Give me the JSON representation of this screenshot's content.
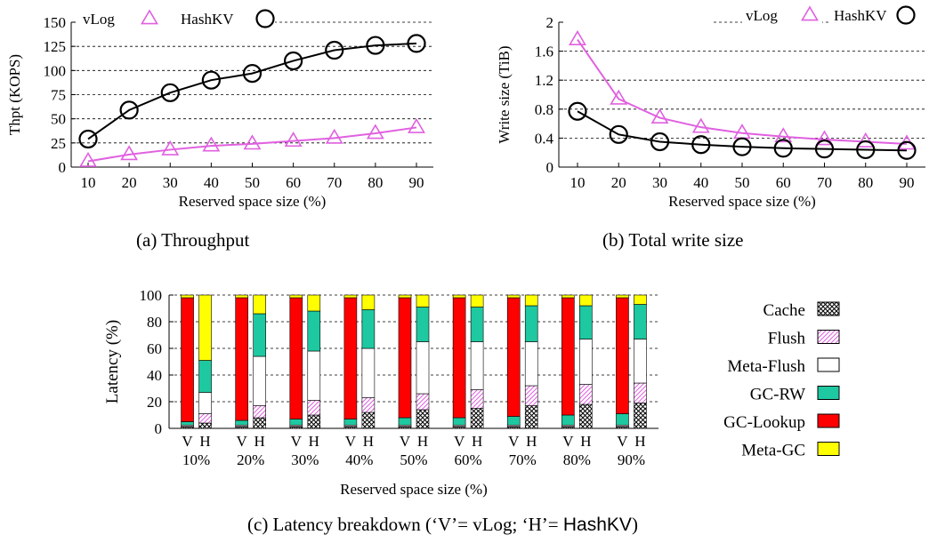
{
  "chart_data": [
    {
      "id": "a",
      "type": "line",
      "caption": "(a) Throughput",
      "xlabel": "Reserved space size (%)",
      "ylabel": "Thpt (KOPS)",
      "x": [
        10,
        20,
        30,
        40,
        50,
        60,
        70,
        80,
        90
      ],
      "x_tick_labels": [
        "10",
        "20",
        "30",
        "40",
        "50",
        "60",
        "70",
        "80",
        "90"
      ],
      "ylim": [
        0,
        150
      ],
      "y_ticks": [
        0,
        25,
        50,
        75,
        100,
        125,
        150
      ],
      "grid": "horizontal dashed",
      "legend_placement": "top",
      "series": [
        {
          "name": "vLog",
          "marker": "triangle",
          "color": "#e060e0",
          "values": [
            6,
            13,
            18,
            22,
            24,
            27,
            30,
            35,
            41
          ]
        },
        {
          "name": "HashKV",
          "marker": "circle",
          "color": "#000000",
          "values": [
            29,
            59,
            77,
            90,
            97,
            110,
            121,
            126,
            128
          ]
        }
      ]
    },
    {
      "id": "b",
      "type": "line",
      "caption": "(b) Total write size",
      "xlabel": "Reserved space size (%)",
      "ylabel": "Write size (TiB)",
      "x": [
        10,
        20,
        30,
        40,
        50,
        60,
        70,
        80,
        90
      ],
      "x_tick_labels": [
        "10",
        "20",
        "30",
        "40",
        "50",
        "60",
        "70",
        "80",
        "90"
      ],
      "ylim": [
        0,
        2
      ],
      "y_ticks": [
        0,
        0.4,
        0.8,
        1.2,
        1.6,
        2
      ],
      "y_tick_labels": [
        "0",
        "0.4",
        "0.8",
        "1.2",
        "1.6",
        "2"
      ],
      "grid": "horizontal dashed",
      "legend_placement": "top-right",
      "series": [
        {
          "name": "vLog",
          "marker": "triangle",
          "color": "#e060e0",
          "values": [
            1.76,
            0.94,
            0.68,
            0.55,
            0.47,
            0.42,
            0.38,
            0.35,
            0.32
          ]
        },
        {
          "name": "HashKV",
          "marker": "circle",
          "color": "#000000",
          "values": [
            0.77,
            0.45,
            0.35,
            0.31,
            0.28,
            0.26,
            0.25,
            0.24,
            0.23
          ]
        }
      ]
    },
    {
      "id": "c",
      "type": "bar",
      "stacked": true,
      "caption_prefix": "(c) Latency breakdown (‘V’= vLog; ‘H’= ",
      "caption_brand": "HashKV",
      "caption_suffix": ")",
      "xlabel": "Reserved space size (%)",
      "ylabel": "Latency (%)",
      "ylim": [
        0,
        100
      ],
      "y_ticks": [
        0,
        20,
        40,
        60,
        80,
        100
      ],
      "grid": "horizontal dashed",
      "legend_placement": "right",
      "groups": [
        "10%",
        "20%",
        "30%",
        "40%",
        "50%",
        "60%",
        "70%",
        "80%",
        "90%"
      ],
      "bar_labels": [
        "V",
        "H"
      ],
      "components": [
        {
          "name": "Cache",
          "pattern": "crosshatch",
          "color": "#000000"
        },
        {
          "name": "Flush",
          "pattern": "diagonal",
          "color": "#e060e0"
        },
        {
          "name": "Meta-Flush",
          "pattern": "solid",
          "color": "#ffffff"
        },
        {
          "name": "GC-RW",
          "pattern": "solid",
          "color": "#1ec8a0"
        },
        {
          "name": "GC-Lookup",
          "pattern": "solid",
          "color": "#ff0000"
        },
        {
          "name": "Meta-GC",
          "pattern": "solid",
          "color": "#ffff00"
        }
      ],
      "legend_order": [
        "Cache",
        "Flush",
        "Meta-Flush",
        "GC-RW",
        "GC-Lookup",
        "Meta-GC"
      ],
      "series": {
        "V": [
          [
            1,
            0.5,
            1,
            2.5,
            93,
            2
          ],
          [
            1,
            0.5,
            1,
            3.5,
            92,
            2
          ],
          [
            1,
            0.5,
            1,
            4.5,
            91,
            2
          ],
          [
            1,
            0.5,
            1,
            4.5,
            91,
            2
          ],
          [
            1,
            0.5,
            1,
            5.5,
            90,
            2
          ],
          [
            1,
            0.5,
            1,
            5.5,
            90,
            2
          ],
          [
            1,
            0.5,
            1,
            6.5,
            89,
            2
          ],
          [
            1,
            0.5,
            1,
            7.5,
            88,
            2
          ],
          [
            1,
            0.5,
            1,
            8.5,
            87,
            2
          ]
        ],
        "H": [
          [
            4,
            7,
            16,
            24,
            0,
            49
          ],
          [
            8,
            9,
            37,
            32,
            0,
            14
          ],
          [
            10,
            11,
            37,
            30,
            0,
            12
          ],
          [
            12,
            11,
            37,
            29,
            0,
            11
          ],
          [
            14,
            12,
            39,
            26,
            0,
            9
          ],
          [
            15,
            14,
            36,
            26,
            0,
            9
          ],
          [
            17,
            15,
            33,
            27,
            0,
            8
          ],
          [
            18,
            15,
            34,
            25,
            0,
            8
          ],
          [
            19,
            15,
            33,
            26,
            0,
            7
          ]
        ]
      }
    }
  ]
}
